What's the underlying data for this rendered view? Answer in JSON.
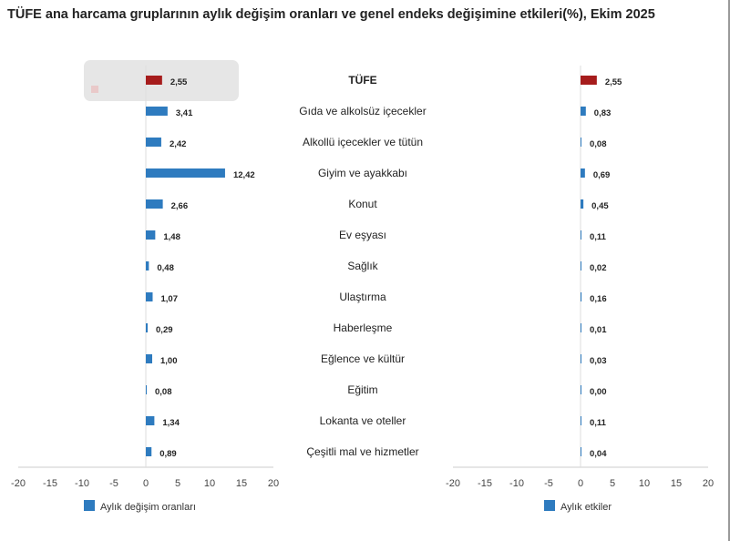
{
  "chart_data": [
    {
      "type": "bar",
      "orientation": "horizontal",
      "title": "TÜFE ana harcama gruplarının aylık değişim oranları ve genel endeks değişimine etkileri(%), Ekim 2025",
      "categories": [
        "TÜFE",
        "Gıda ve alkolsüz içecekler",
        "Alkollü içecekler ve tütün",
        "Giyim ve ayakkabı",
        "Konut",
        "Ev eşyası",
        "Sağlık",
        "Ulaştırma",
        "Haberleşme",
        "Eğlence ve kültür",
        "Eğitim",
        "Lokanta ve oteller",
        "Çeşitli mal ve hizmetler"
      ],
      "series": [
        {
          "name": "Aylık değişim oranları",
          "values": [
            2.55,
            3.41,
            2.42,
            12.42,
            2.66,
            1.48,
            0.48,
            1.07,
            0.29,
            1.0,
            0.08,
            1.34,
            0.89
          ]
        }
      ],
      "value_labels": [
        "2,55",
        "3,41",
        "2,42",
        "12,42",
        "2,66",
        "1,48",
        "0,48",
        "1,07",
        "0,29",
        "1,00",
        "0,08",
        "1,34",
        "0,89"
      ],
      "xlim": [
        -20,
        20
      ],
      "xticks": [
        "-20",
        "-15",
        "-10",
        "-5",
        "0",
        "5",
        "10",
        "15",
        "20"
      ],
      "legend": "bottom",
      "grid": false,
      "colors": {
        "series": "#2e7bbf",
        "highlight": "#a61c1c"
      }
    },
    {
      "type": "bar",
      "orientation": "horizontal",
      "categories": [
        "TÜFE",
        "Gıda ve alkolsüz içecekler",
        "Alkollü içecekler ve tütün",
        "Giyim ve ayakkabı",
        "Konut",
        "Ev eşyası",
        "Sağlık",
        "Ulaştırma",
        "Haberleşme",
        "Eğlence ve kültür",
        "Eğitim",
        "Lokanta ve oteller",
        "Çeşitli mal ve hizmetler"
      ],
      "series": [
        {
          "name": "Aylık etkiler",
          "values": [
            2.55,
            0.83,
            0.08,
            0.69,
            0.45,
            0.11,
            0.02,
            0.16,
            0.01,
            0.03,
            0.0,
            0.11,
            0.04
          ]
        }
      ],
      "value_labels": [
        "2,55",
        "0,83",
        "0,08",
        "0,69",
        "0,45",
        "0,11",
        "0,02",
        "0,16",
        "0,01",
        "0,03",
        "0,00",
        "0,11",
        "0,04"
      ],
      "xlim": [
        -20,
        20
      ],
      "xticks": [
        "-20",
        "-15",
        "-10",
        "-5",
        "0",
        "5",
        "10",
        "15",
        "20"
      ],
      "legend": "bottom",
      "grid": false,
      "colors": {
        "series": "#2e7bbf",
        "highlight": "#a61c1c"
      }
    }
  ]
}
